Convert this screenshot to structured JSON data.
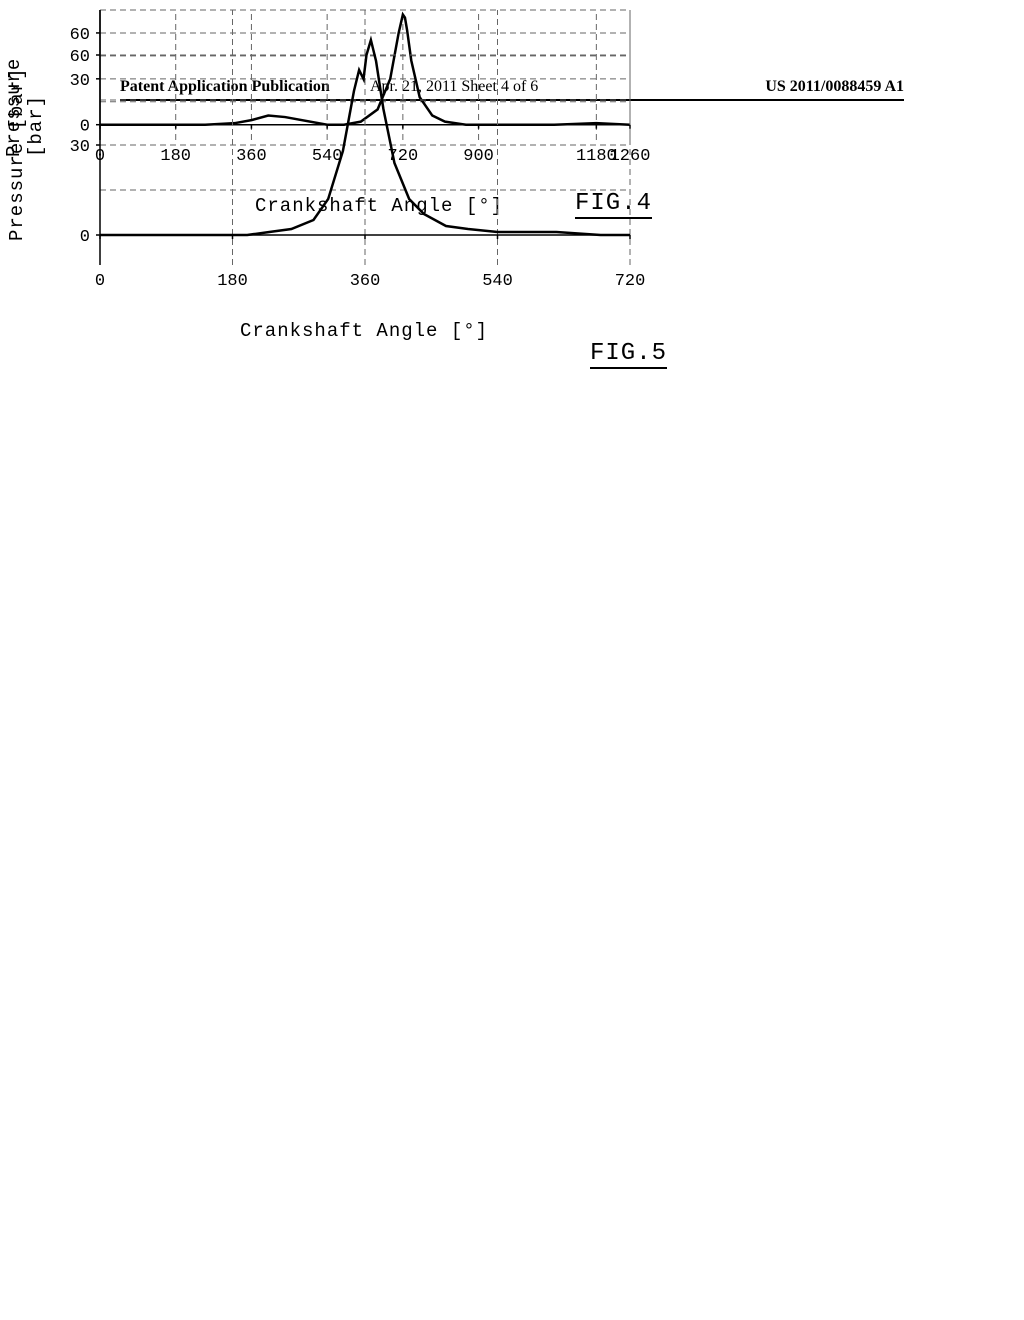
{
  "header": {
    "left": "Patent Application Publication",
    "center": "Apr. 21, 2011  Sheet 4 of 6",
    "right": "US 2011/0088459 A1"
  },
  "chart4": {
    "type": "line",
    "ylabel": "Pressure [bar]",
    "xlabel": "Crankshaft Angle [°]",
    "fig_label": "FIG.4",
    "xlim": [
      0,
      1260
    ],
    "ylim": [
      -10,
      75
    ],
    "xticks": [
      0,
      180,
      360,
      540,
      720,
      900,
      1180,
      1260
    ],
    "yticks": [
      0,
      30,
      60
    ],
    "grid_color": "#666666",
    "line_color": "#000000",
    "line_width": 2.5,
    "data_x": [
      0,
      50,
      180,
      250,
      320,
      360,
      400,
      440,
      540,
      580,
      620,
      660,
      690,
      710,
      720,
      725,
      730,
      740,
      760,
      790,
      820,
      870,
      920,
      1000,
      1080,
      1180,
      1260
    ],
    "data_y": [
      0,
      0,
      0,
      0,
      1,
      3,
      6,
      5,
      0,
      0,
      2,
      10,
      30,
      60,
      72,
      70,
      62,
      42,
      18,
      6,
      2,
      0,
      0,
      0,
      0,
      1,
      0
    ]
  },
  "chart5": {
    "type": "line",
    "ylabel": "Pressure [bar]",
    "xlabel": "Crankshaft Angle [°]",
    "fig_label": "FIG.5",
    "xlim": [
      0,
      720
    ],
    "ylim": [
      -10,
      75
    ],
    "xticks": [
      0,
      180,
      360,
      540,
      720
    ],
    "yticks": [
      0,
      30,
      60
    ],
    "grid_color": "#666666",
    "line_color": "#000000",
    "line_width": 2.5,
    "data_x": [
      0,
      50,
      100,
      150,
      200,
      230,
      260,
      290,
      310,
      330,
      345,
      352,
      358,
      362,
      368,
      375,
      385,
      400,
      420,
      440,
      470,
      500,
      540,
      580,
      620,
      680,
      720
    ],
    "data_y": [
      0,
      0,
      0,
      0,
      0,
      1,
      2,
      5,
      12,
      28,
      48,
      55,
      52,
      60,
      65,
      58,
      42,
      24,
      12,
      7,
      3,
      2,
      1,
      1,
      1,
      0,
      0
    ]
  }
}
